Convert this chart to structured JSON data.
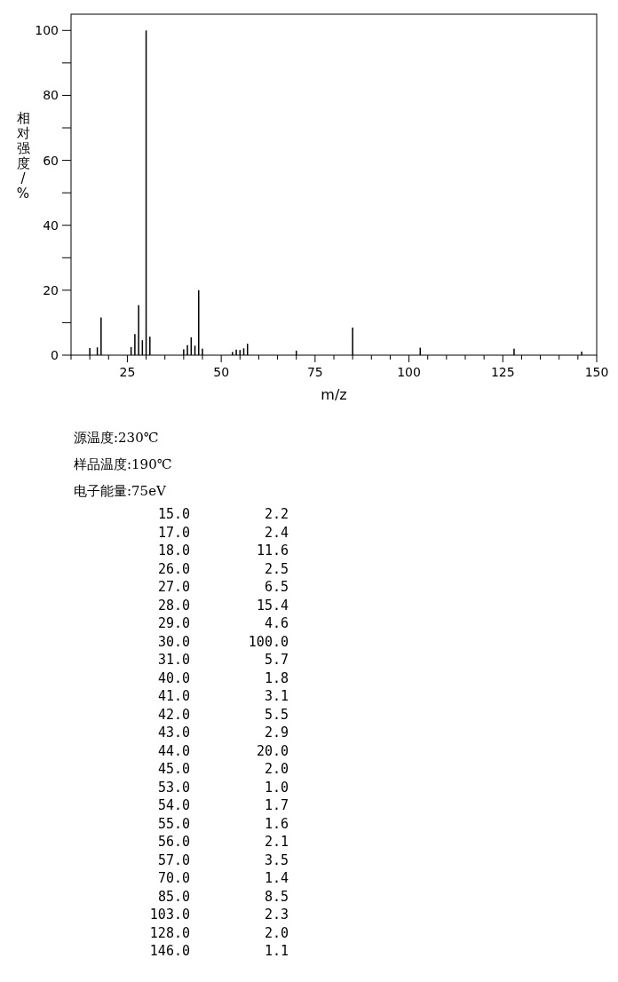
{
  "chart_data": {
    "type": "bar",
    "xlabel": "m/z",
    "ylabel": "相对强度/%",
    "x": [
      15,
      17,
      18,
      26,
      27,
      28,
      29,
      30,
      31,
      40,
      41,
      42,
      43,
      44,
      45,
      53,
      54,
      55,
      56,
      57,
      70,
      85,
      103,
      128,
      146
    ],
    "values": [
      2.2,
      2.4,
      11.6,
      2.5,
      6.5,
      15.4,
      4.6,
      100,
      5.7,
      1.8,
      3.1,
      5.5,
      2.9,
      20,
      2.0,
      1.0,
      1.7,
      1.6,
      2.1,
      3.5,
      1.4,
      8.5,
      2.3,
      2.0,
      1.1
    ],
    "color": "#000000",
    "grid": false,
    "xlim": [
      10,
      150
    ],
    "xticks": [
      {
        "value": 10,
        "label": null
      },
      {
        "value": 15,
        "label": null
      },
      {
        "value": 20,
        "label": null
      },
      25,
      {
        "value": 30,
        "label": null
      },
      {
        "value": 35,
        "label": null
      },
      {
        "value": 40,
        "label": null
      },
      {
        "value": 45,
        "label": null
      },
      50,
      {
        "value": 55,
        "label": null
      },
      {
        "value": 60,
        "label": null
      },
      {
        "value": 65,
        "label": null
      },
      {
        "value": 70,
        "label": null
      },
      75,
      {
        "value": 80,
        "label": null
      },
      {
        "value": 85,
        "label": null
      },
      {
        "value": 90,
        "label": null
      },
      {
        "value": 95,
        "label": null
      },
      100,
      {
        "value": 105,
        "label": null
      },
      {
        "value": 110,
        "label": null
      },
      {
        "value": 115,
        "label": null
      },
      {
        "value": 120,
        "label": null
      },
      125,
      {
        "value": 130,
        "label": null
      },
      {
        "value": 135,
        "label": null
      },
      {
        "value": 140,
        "label": null
      },
      {
        "value": 145,
        "label": null
      },
      150
    ],
    "ylim": [
      0,
      105
    ],
    "yticks": [
      0,
      {
        "value": 10,
        "label": null
      },
      20,
      {
        "value": 30,
        "label": null
      },
      40,
      {
        "value": 50,
        "label": null
      },
      60,
      {
        "value": 70,
        "label": null
      },
      80,
      {
        "value": 90,
        "label": null
      },
      100
    ],
    "annotations": [
      "源温度:230℃",
      "样品温度:190℃",
      "电子能量:75eV",
      "15.0 2.2",
      "17.0 2.4",
      "18.0 11.6",
      "26.0 2.5",
      "27.0 6.5",
      "28.0 15.4",
      "29.0 4.6",
      "30.0 100.0",
      "31.0 5.7",
      "40.0 1.8",
      "41.0 3.1",
      "42.0 5.5",
      "43.0 2.9",
      "44.0 20.0",
      "45.0 2.0",
      "53.0 1.0",
      "54.0 1.7",
      "55.0 1.6",
      "56.0 2.1",
      "57.0 3.5",
      "70.0 1.4",
      "85.0 8.5",
      "103.0 2.3",
      "128.0 2.0",
      "146.0 1.1"
    ]
  }
}
